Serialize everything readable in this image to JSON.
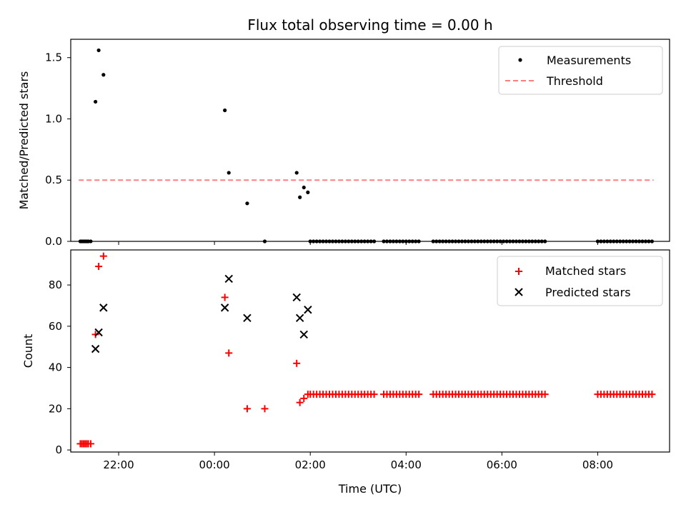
{
  "chart_data": [
    {
      "type": "scatter",
      "title": "Flux total observing time = 0.00 h",
      "ylabel": "Matched/Predicted stars",
      "xlabel": "",
      "xlim": [
        "21:00",
        "09:30"
      ],
      "ylim": [
        0,
        1.65
      ],
      "yticks": [
        0,
        0.5,
        1.0,
        1.5
      ],
      "ytick_labels": [
        "0.0",
        "0.5",
        "1.0",
        "1.5"
      ],
      "xticks": [
        "22:00",
        "00:00",
        "02:00",
        "04:00",
        "06:00",
        "08:00"
      ],
      "legend_position": "top-right",
      "colors": {
        "measurements": "#000000",
        "threshold": "#ff7f7f"
      },
      "series": [
        {
          "name": "Measurements",
          "marker": "dot",
          "points": [
            [
              "21:12",
              0
            ],
            [
              "21:14",
              0
            ],
            [
              "21:16",
              0
            ],
            [
              "21:18",
              0
            ],
            [
              "21:20",
              0
            ],
            [
              "21:22",
              0
            ],
            [
              "21:25",
              0
            ],
            [
              "21:31",
              1.14
            ],
            [
              "21:35",
              1.56
            ],
            [
              "21:41",
              1.36
            ],
            [
              "00:13",
              1.07
            ],
            [
              "00:18",
              0.56
            ],
            [
              "00:41",
              0.31
            ],
            [
              "01:03",
              0
            ],
            [
              "01:43",
              0.56
            ],
            [
              "01:47",
              0.36
            ],
            [
              "01:52",
              0.44
            ],
            [
              "01:57",
              0.4
            ],
            [
              "02:00",
              0
            ],
            [
              "02:04",
              0
            ],
            [
              "02:08",
              0
            ],
            [
              "02:12",
              0
            ],
            [
              "02:16",
              0
            ],
            [
              "02:20",
              0
            ],
            [
              "02:24",
              0
            ],
            [
              "02:28",
              0
            ],
            [
              "02:32",
              0
            ],
            [
              "02:36",
              0
            ],
            [
              "02:40",
              0
            ],
            [
              "02:44",
              0
            ],
            [
              "02:48",
              0
            ],
            [
              "02:52",
              0
            ],
            [
              "02:56",
              0
            ],
            [
              "03:00",
              0
            ],
            [
              "03:04",
              0
            ],
            [
              "03:08",
              0
            ],
            [
              "03:12",
              0
            ],
            [
              "03:16",
              0
            ],
            [
              "03:20",
              0
            ],
            [
              "03:32",
              0
            ],
            [
              "03:36",
              0
            ],
            [
              "03:40",
              0
            ],
            [
              "03:44",
              0
            ],
            [
              "03:48",
              0
            ],
            [
              "03:52",
              0
            ],
            [
              "03:56",
              0
            ],
            [
              "04:00",
              0
            ],
            [
              "04:04",
              0
            ],
            [
              "04:08",
              0
            ],
            [
              "04:12",
              0
            ],
            [
              "04:16",
              0
            ],
            [
              "04:34",
              0
            ],
            [
              "04:38",
              0
            ],
            [
              "04:42",
              0
            ],
            [
              "04:46",
              0
            ],
            [
              "04:50",
              0
            ],
            [
              "04:54",
              0
            ],
            [
              "04:58",
              0
            ],
            [
              "05:02",
              0
            ],
            [
              "05:06",
              0
            ],
            [
              "05:10",
              0
            ],
            [
              "05:14",
              0
            ],
            [
              "05:18",
              0
            ],
            [
              "05:22",
              0
            ],
            [
              "05:26",
              0
            ],
            [
              "05:30",
              0
            ],
            [
              "05:34",
              0
            ],
            [
              "05:38",
              0
            ],
            [
              "05:42",
              0
            ],
            [
              "05:46",
              0
            ],
            [
              "05:50",
              0
            ],
            [
              "05:54",
              0
            ],
            [
              "05:58",
              0
            ],
            [
              "06:02",
              0
            ],
            [
              "06:06",
              0
            ],
            [
              "06:10",
              0
            ],
            [
              "06:14",
              0
            ],
            [
              "06:18",
              0
            ],
            [
              "06:22",
              0
            ],
            [
              "06:26",
              0
            ],
            [
              "06:30",
              0
            ],
            [
              "06:34",
              0
            ],
            [
              "06:38",
              0
            ],
            [
              "06:42",
              0
            ],
            [
              "06:46",
              0
            ],
            [
              "06:50",
              0
            ],
            [
              "06:54",
              0
            ],
            [
              "08:00",
              0
            ],
            [
              "08:04",
              0
            ],
            [
              "08:08",
              0
            ],
            [
              "08:12",
              0
            ],
            [
              "08:16",
              0
            ],
            [
              "08:20",
              0
            ],
            [
              "08:24",
              0
            ],
            [
              "08:28",
              0
            ],
            [
              "08:32",
              0
            ],
            [
              "08:36",
              0
            ],
            [
              "08:40",
              0
            ],
            [
              "08:44",
              0
            ],
            [
              "08:48",
              0
            ],
            [
              "08:52",
              0
            ],
            [
              "08:56",
              0
            ],
            [
              "09:00",
              0
            ],
            [
              "09:04",
              0
            ],
            [
              "09:08",
              0
            ]
          ]
        },
        {
          "name": "Threshold",
          "style": "dashed-line",
          "points": [
            [
              "21:10",
              0.5
            ],
            [
              "09:10",
              0.5
            ]
          ]
        }
      ]
    },
    {
      "type": "scatter",
      "title": "",
      "ylabel": "Count",
      "xlabel": "Time (UTC)",
      "xlim": [
        "21:00",
        "09:30"
      ],
      "ylim": [
        -1,
        97
      ],
      "yticks": [
        0,
        20,
        40,
        60,
        80
      ],
      "ytick_labels": [
        "0",
        "20",
        "40",
        "60",
        "80"
      ],
      "xticks": [
        "22:00",
        "00:00",
        "02:00",
        "04:00",
        "06:00",
        "08:00"
      ],
      "legend_position": "top-right",
      "colors": {
        "matched": "#ff0000",
        "predicted": "#000000"
      },
      "series": [
        {
          "name": "Matched stars",
          "marker": "plus",
          "points": [
            [
              "21:12",
              3
            ],
            [
              "21:14",
              3
            ],
            [
              "21:16",
              3
            ],
            [
              "21:18",
              3
            ],
            [
              "21:20",
              3
            ],
            [
              "21:22",
              3
            ],
            [
              "21:25",
              3
            ],
            [
              "21:31",
              56
            ],
            [
              "21:35",
              89
            ],
            [
              "21:41",
              94
            ],
            [
              "00:13",
              74
            ],
            [
              "00:18",
              47
            ],
            [
              "00:41",
              20
            ],
            [
              "01:03",
              20
            ],
            [
              "01:43",
              42
            ],
            [
              "01:47",
              23
            ],
            [
              "01:52",
              25
            ],
            [
              "01:57",
              27
            ],
            [
              "02:00",
              27
            ],
            [
              "02:04",
              27
            ],
            [
              "02:08",
              27
            ],
            [
              "02:12",
              27
            ],
            [
              "02:16",
              27
            ],
            [
              "02:20",
              27
            ],
            [
              "02:24",
              27
            ],
            [
              "02:28",
              27
            ],
            [
              "02:32",
              27
            ],
            [
              "02:36",
              27
            ],
            [
              "02:40",
              27
            ],
            [
              "02:44",
              27
            ],
            [
              "02:48",
              27
            ],
            [
              "02:52",
              27
            ],
            [
              "02:56",
              27
            ],
            [
              "03:00",
              27
            ],
            [
              "03:04",
              27
            ],
            [
              "03:08",
              27
            ],
            [
              "03:12",
              27
            ],
            [
              "03:16",
              27
            ],
            [
              "03:20",
              27
            ],
            [
              "03:32",
              27
            ],
            [
              "03:36",
              27
            ],
            [
              "03:40",
              27
            ],
            [
              "03:44",
              27
            ],
            [
              "03:48",
              27
            ],
            [
              "03:52",
              27
            ],
            [
              "03:56",
              27
            ],
            [
              "04:00",
              27
            ],
            [
              "04:04",
              27
            ],
            [
              "04:08",
              27
            ],
            [
              "04:12",
              27
            ],
            [
              "04:16",
              27
            ],
            [
              "04:34",
              27
            ],
            [
              "04:38",
              27
            ],
            [
              "04:42",
              27
            ],
            [
              "04:46",
              27
            ],
            [
              "04:50",
              27
            ],
            [
              "04:54",
              27
            ],
            [
              "04:58",
              27
            ],
            [
              "05:02",
              27
            ],
            [
              "05:06",
              27
            ],
            [
              "05:10",
              27
            ],
            [
              "05:14",
              27
            ],
            [
              "05:18",
              27
            ],
            [
              "05:22",
              27
            ],
            [
              "05:26",
              27
            ],
            [
              "05:30",
              27
            ],
            [
              "05:34",
              27
            ],
            [
              "05:38",
              27
            ],
            [
              "05:42",
              27
            ],
            [
              "05:46",
              27
            ],
            [
              "05:50",
              27
            ],
            [
              "05:54",
              27
            ],
            [
              "05:58",
              27
            ],
            [
              "06:02",
              27
            ],
            [
              "06:06",
              27
            ],
            [
              "06:10",
              27
            ],
            [
              "06:14",
              27
            ],
            [
              "06:18",
              27
            ],
            [
              "06:22",
              27
            ],
            [
              "06:26",
              27
            ],
            [
              "06:30",
              27
            ],
            [
              "06:34",
              27
            ],
            [
              "06:38",
              27
            ],
            [
              "06:42",
              27
            ],
            [
              "06:46",
              27
            ],
            [
              "06:50",
              27
            ],
            [
              "06:54",
              27
            ],
            [
              "08:00",
              27
            ],
            [
              "08:04",
              27
            ],
            [
              "08:08",
              27
            ],
            [
              "08:12",
              27
            ],
            [
              "08:16",
              27
            ],
            [
              "08:20",
              27
            ],
            [
              "08:24",
              27
            ],
            [
              "08:28",
              27
            ],
            [
              "08:32",
              27
            ],
            [
              "08:36",
              27
            ],
            [
              "08:40",
              27
            ],
            [
              "08:44",
              27
            ],
            [
              "08:48",
              27
            ],
            [
              "08:52",
              27
            ],
            [
              "08:56",
              27
            ],
            [
              "09:00",
              27
            ],
            [
              "09:04",
              27
            ],
            [
              "09:08",
              27
            ]
          ]
        },
        {
          "name": "Predicted stars",
          "marker": "x",
          "points": [
            [
              "21:31",
              49
            ],
            [
              "21:35",
              57
            ],
            [
              "21:41",
              69
            ],
            [
              "00:13",
              69
            ],
            [
              "00:18",
              83
            ],
            [
              "00:41",
              64
            ],
            [
              "01:43",
              74
            ],
            [
              "01:47",
              64
            ],
            [
              "01:52",
              56
            ],
            [
              "01:57",
              68
            ]
          ]
        }
      ]
    }
  ]
}
